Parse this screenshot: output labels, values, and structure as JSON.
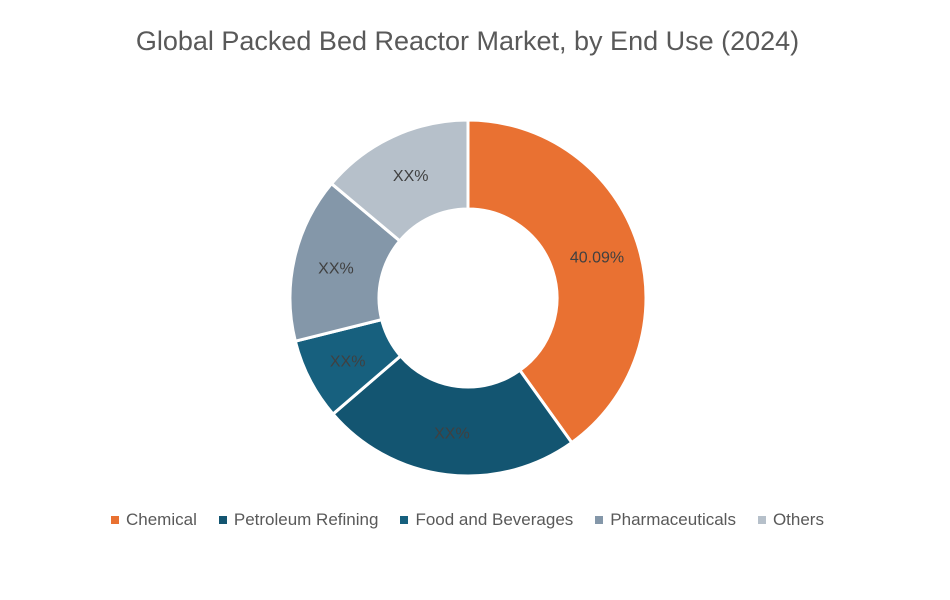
{
  "chart_data": {
    "type": "pie",
    "donut": true,
    "title": "Global Packed Bed Reactor Market, by End Use (2024)",
    "categories": [
      "Chemical",
      "Petroleum Refining",
      "Food and Beverages",
      "Pharmaceuticals",
      "Others"
    ],
    "values": [
      40.09,
      23.6,
      7.4,
      15.0,
      13.9
    ],
    "data_labels": [
      "40.09%",
      "XX%",
      "XX%",
      "XX%",
      "XX%"
    ],
    "colors": [
      "#E97132",
      "#135571",
      "#17607E",
      "#8497A9",
      "#B6C0CA"
    ],
    "legend_position": "bottom"
  }
}
